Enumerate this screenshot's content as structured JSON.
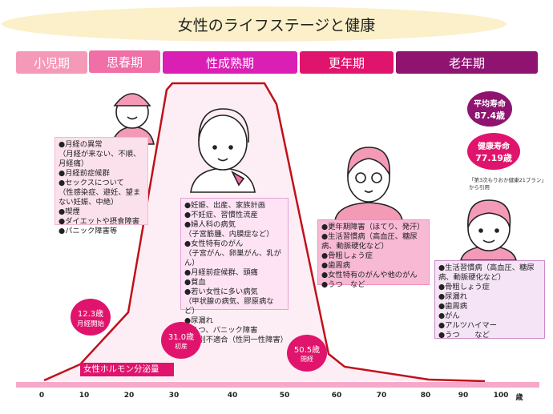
{
  "title": "女性のライフステージと健康",
  "stages": [
    {
      "label": "小児期",
      "color": "#f49ab8"
    },
    {
      "label": "思春期",
      "color": "#ef6fa6"
    },
    {
      "label": "性成熟期",
      "color": "#d91fb4"
    },
    {
      "label": "更年期",
      "color": "#e0146c"
    },
    {
      "label": "老年期",
      "color": "#8e1470"
    }
  ],
  "boxes": {
    "puberty": "●月経の異常\n（月経が来ない、不順、月経痛）\n●月経前症候群\n●セックスについて\n（性感染症、避妊、望まない妊娠、中絶）\n●喫煙\n●ダイエットや摂食障害\n●パニック障害等",
    "mature": "●妊娠、出産、家族計画\n●不妊症、習慣性流産\n●婦人科の病気\n（子宮筋腫、内膜症など）\n●女性特有のがん\n（子宮がん、卵巣がん、乳がん）\n●月経前症候群、頭痛\n●貧血\n●若い女性に多い病気\n（甲状腺の病気、膠原病など）\n●尿漏れ\n●うつ、パニック障害\n●性別不適合（性同一性障害）",
    "menopause": "●更年期障害（ほてり、発汗）\n●生活習慣病（高血圧、糖尿病、動脈硬化など）\n●骨粗しょう症\n●歯周病\n●女性特有のがんや他のがん\n●うつ　など",
    "elderly": "●生活習慣病（高血圧、糖尿病、動脈硬化など）\n●骨粗しょう症\n●尿漏れ\n●歯周病\n●がん\n●アルツハイマー\n●うつ　　など"
  },
  "life_expectancy": {
    "label": "平均寿命",
    "value": "87.4歳"
  },
  "healthy_life": {
    "label": "健康寿命",
    "value": "77.19歳"
  },
  "citation": "「第3次もりおか健康21プラン」\nから引用",
  "events": [
    {
      "age": "12.3歳",
      "label": "月経開始"
    },
    {
      "age": "31.0歳",
      "label": "初産"
    },
    {
      "age": "50.5歳",
      "label": "閉経"
    }
  ],
  "hormone_label": "女性ホルモン分泌量",
  "axis": {
    "ticks": [
      "0",
      "10",
      "20",
      "30",
      "40",
      "50",
      "60",
      "70",
      "80",
      "90",
      "100"
    ],
    "unit": "歳"
  },
  "colors": {
    "curve": "#c0101a",
    "fill": "#fdeef5",
    "bar": "#f6a9c9",
    "event": "#e0146c"
  }
}
